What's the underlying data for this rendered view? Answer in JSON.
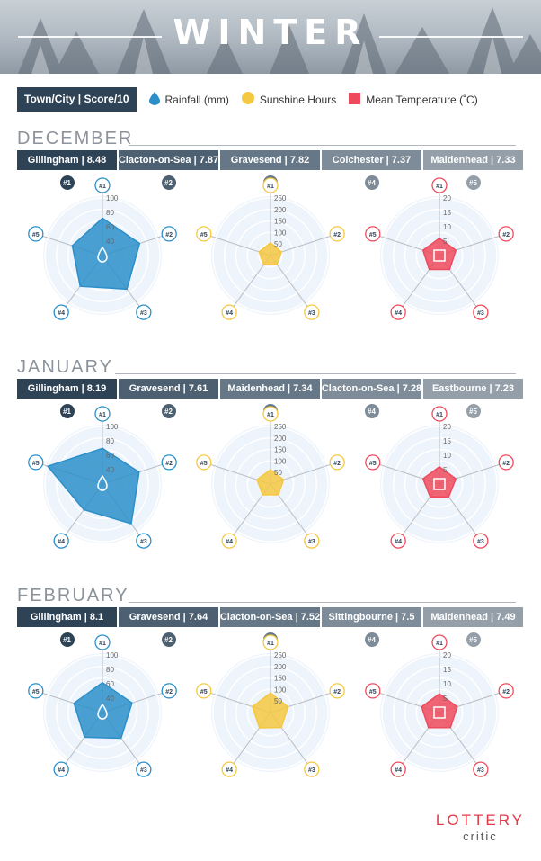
{
  "header": {
    "title": "WINTER"
  },
  "legend": {
    "key_label": "Town/City | Score/10",
    "items": [
      {
        "label": "Rainfall (mm)",
        "icon": "raindrop-icon",
        "color": "#2b8fc9"
      },
      {
        "label": "Sunshine Hours",
        "icon": "sun-circle-icon",
        "color": "#f5c842"
      },
      {
        "label": "Mean Temperature (˚C)",
        "icon": "square-icon",
        "color": "#ef4a5c"
      }
    ]
  },
  "colors": {
    "tab_shades": [
      "#2f4356",
      "#4d6072",
      "#667887",
      "#7e8c99",
      "#959fa9"
    ],
    "rain": "#2b8fc9",
    "sun": "#f5c842",
    "temp": "#ef4a5c"
  },
  "chart_data": [
    {
      "month": "DECEMBER",
      "ranking": [
        {
          "rank": "#1",
          "town": "Gillingham",
          "score": "8.48"
        },
        {
          "rank": "#2",
          "town": "Clacton-on-Sea",
          "score": "7.87"
        },
        {
          "rank": "#3",
          "town": "Gravesend",
          "score": "7.82"
        },
        {
          "rank": "#4",
          "town": "Colchester",
          "score": "7.37"
        },
        {
          "rank": "#5",
          "town": "Maidenhead",
          "score": "7.33"
        }
      ],
      "rainfall": {
        "type": "radar",
        "axes": [
          "#1",
          "#2",
          "#3",
          "#4",
          "#5"
        ],
        "values": [
          65,
          68,
          72,
          66,
          55
        ],
        "ticks": [
          "40",
          "60",
          "80",
          "100"
        ],
        "max": 100
      },
      "sunshine": {
        "type": "radar",
        "axes": [
          "#1",
          "#2",
          "#3",
          "#4",
          "#5"
        ],
        "values": [
          55,
          50,
          48,
          50,
          52
        ],
        "ticks": [
          "50",
          "100",
          "150",
          "200",
          "250"
        ],
        "max": 250
      },
      "temperature": {
        "type": "radar",
        "axes": [
          "#1",
          "#2",
          "#3",
          "#4",
          "#5"
        ],
        "values": [
          6,
          6,
          6,
          6,
          6
        ],
        "ticks": [
          "5",
          "10",
          "15",
          "20"
        ],
        "max": 20
      }
    },
    {
      "month": "JANUARY",
      "ranking": [
        {
          "rank": "#1",
          "town": "Gillingham",
          "score": "8.19"
        },
        {
          "rank": "#2",
          "town": "Gravesend",
          "score": "7.61"
        },
        {
          "rank": "#3",
          "town": "Maidenhead",
          "score": "7.34"
        },
        {
          "rank": "#4",
          "town": "Clacton-on-Sea",
          "score": "7.28"
        },
        {
          "rank": "#5",
          "town": "Eastbourne",
          "score": "7.23"
        }
      ],
      "rainfall": {
        "type": "radar",
        "axes": [
          "#1",
          "#2",
          "#3",
          "#4",
          "#5"
        ],
        "values": [
          62,
          67,
          85,
          55,
          100
        ],
        "ticks": [
          "40",
          "60",
          "80",
          "100"
        ],
        "max": 100
      },
      "sunshine": {
        "type": "radar",
        "axes": [
          "#1",
          "#2",
          "#3",
          "#4",
          "#5"
        ],
        "values": [
          62,
          60,
          58,
          58,
          62
        ],
        "ticks": [
          "50",
          "100",
          "150",
          "200",
          "250"
        ],
        "max": 250
      },
      "temperature": {
        "type": "radar",
        "axes": [
          "#1",
          "#2",
          "#3",
          "#4",
          "#5"
        ],
        "values": [
          6,
          6,
          5.5,
          5.5,
          6
        ],
        "ticks": [
          "5",
          "10",
          "15",
          "20"
        ],
        "max": 20
      }
    },
    {
      "month": "FEBRUARY",
      "ranking": [
        {
          "rank": "#1",
          "town": "Gillingham",
          "score": "8.1"
        },
        {
          "rank": "#2",
          "town": "Gravesend",
          "score": "7.64"
        },
        {
          "rank": "#3",
          "town": "Clacton-on-Sea",
          "score": "7.52"
        },
        {
          "rank": "#4",
          "town": "Sittingbourne",
          "score": "7.5"
        },
        {
          "rank": "#5",
          "town": "Maidenhead",
          "score": "7.49"
        }
      ],
      "rainfall": {
        "type": "radar",
        "axes": [
          "#1",
          "#2",
          "#3",
          "#4",
          "#5"
        ],
        "values": [
          52,
          54,
          55,
          53,
          52
        ],
        "ticks": [
          "40",
          "60",
          "80",
          "100"
        ],
        "max": 100
      },
      "sunshine": {
        "type": "radar",
        "axes": [
          "#1",
          "#2",
          "#3",
          "#4",
          "#5"
        ],
        "values": [
          85,
          80,
          80,
          82,
          82
        ],
        "ticks": [
          "50",
          "100",
          "150",
          "200",
          "250"
        ],
        "max": 250
      },
      "temperature": {
        "type": "radar",
        "axes": [
          "#1",
          "#2",
          "#3",
          "#4",
          "#5"
        ],
        "values": [
          6.5,
          6.5,
          6.5,
          6.5,
          6.5
        ],
        "ticks": [
          "5",
          "10",
          "15",
          "20"
        ],
        "max": 20
      }
    }
  ],
  "logo": {
    "line1": "LOTTERY",
    "line2": "critic"
  }
}
